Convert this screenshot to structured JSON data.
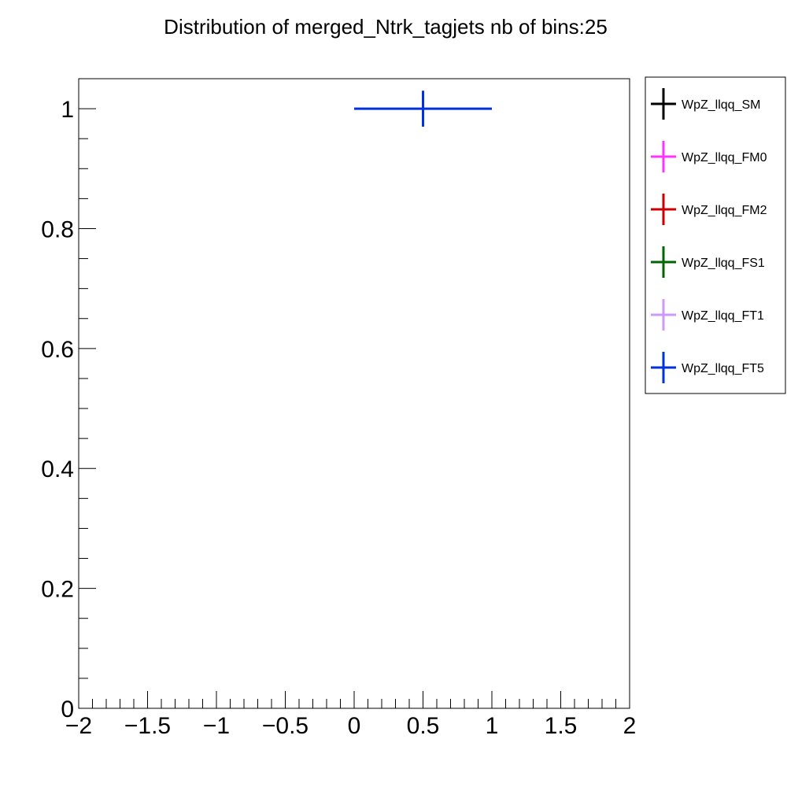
{
  "chart_data": {
    "type": "scatter",
    "title": "Distribution of merged_Ntrk_tagjets nb of bins:25",
    "xlabel": "",
    "ylabel": "",
    "xlim": [
      -2,
      2
    ],
    "ylim": [
      0,
      1.05
    ],
    "x_tick_labels": [
      {
        "value": -2,
        "label": "−2"
      },
      {
        "value": -1.5,
        "label": "−1.5"
      },
      {
        "value": -1,
        "label": "−1"
      },
      {
        "value": -0.5,
        "label": "−0.5"
      },
      {
        "value": 0,
        "label": "0"
      },
      {
        "value": 0.5,
        "label": "0.5"
      },
      {
        "value": 1,
        "label": "1"
      },
      {
        "value": 1.5,
        "label": "1.5"
      },
      {
        "value": 2,
        "label": "2"
      }
    ],
    "y_tick_labels": [
      {
        "value": 0,
        "label": "0"
      },
      {
        "value": 0.2,
        "label": "0.2"
      },
      {
        "value": 0.4,
        "label": "0.4"
      },
      {
        "value": 0.6,
        "label": "0.6"
      },
      {
        "value": 0.8,
        "label": "0.8"
      },
      {
        "value": 1,
        "label": "1"
      }
    ],
    "x_minor_step": 0.1,
    "y_minor_step": 0.05,
    "grid": false,
    "legend_position": "right",
    "series": [
      {
        "name": "WpZ_llqq_SM",
        "color": "#000000",
        "points": []
      },
      {
        "name": "WpZ_llqq_FM0",
        "color": "#ff33ff",
        "points": []
      },
      {
        "name": "WpZ_llqq_FM2",
        "color": "#cc0000",
        "points": []
      },
      {
        "name": "WpZ_llqq_FS1",
        "color": "#006600",
        "points": []
      },
      {
        "name": "WpZ_llqq_FT1",
        "color": "#cc99ff",
        "points": []
      },
      {
        "name": "WpZ_llqq_FT5",
        "color": "#0033dd",
        "points": [
          {
            "x": 0.5,
            "x_low": 0,
            "x_high": 1,
            "y": 1,
            "y_err": 0.03
          }
        ]
      }
    ]
  }
}
